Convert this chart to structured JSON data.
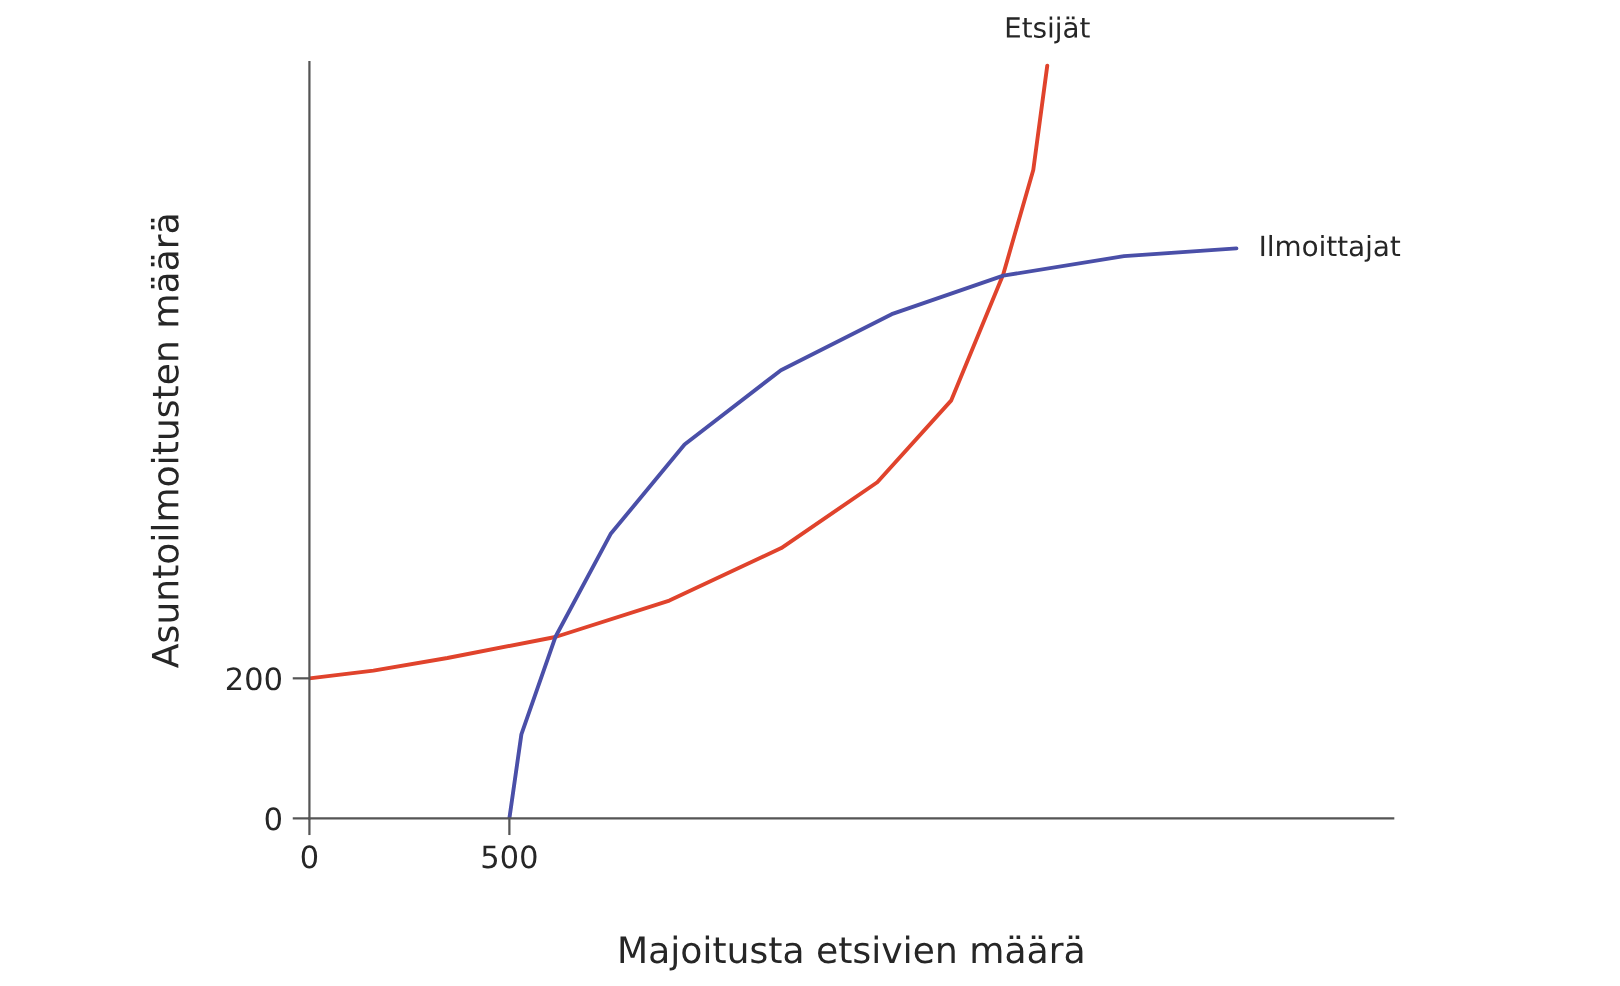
{
  "chart_data": {
    "type": "line",
    "xlabel": "Majoitusta etsivien määrä",
    "ylabel": "Asuntoilmoitusten määrä",
    "xlim": [
      0,
      2710
    ],
    "ylim": [
      0,
      1080
    ],
    "xticks": [
      0,
      500
    ],
    "yticks": [
      0,
      200
    ],
    "grid": false,
    "legend": false,
    "marker": "none",
    "line_style": "solid",
    "series": [
      {
        "name": "Etsijät",
        "color": "#e0432c",
        "x": [
          0,
          160,
          345,
          615,
          900,
          1180,
          1420,
          1605,
          1735,
          1810,
          1845
        ],
        "values": [
          200,
          211,
          229,
          259,
          311,
          386,
          480,
          597,
          777,
          926,
          1075
        ]
      },
      {
        "name": "Ilmoittajat",
        "color": "#4a4fa8",
        "x": [
          500,
          530,
          615,
          753,
          938,
          1179,
          1456,
          1735,
          2037,
          2318
        ],
        "values": [
          0,
          120,
          259,
          406,
          534,
          640,
          720,
          775,
          803,
          814
        ]
      }
    ]
  }
}
